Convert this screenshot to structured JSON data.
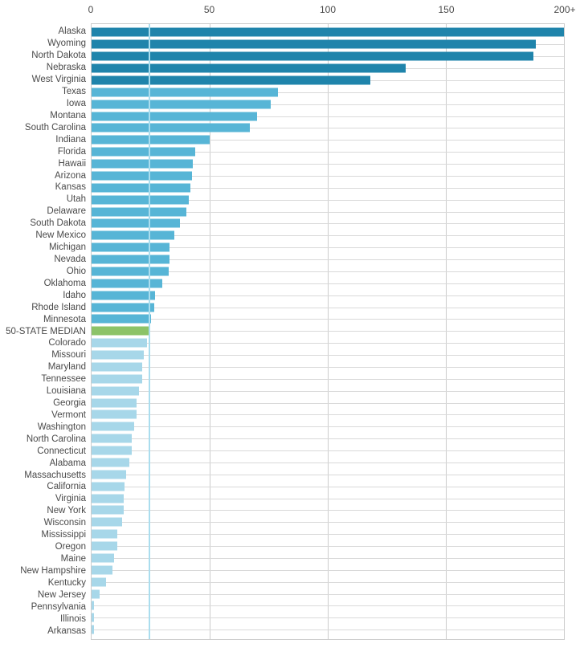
{
  "chart_data": {
    "type": "bar",
    "orientation": "horizontal",
    "title": "",
    "xlabel": "",
    "ylabel": "",
    "xlim": [
      0,
      200
    ],
    "x_axis": {
      "position": "top",
      "ticks": [
        {
          "label": "0",
          "value": 0
        },
        {
          "label": "50",
          "value": 50
        },
        {
          "label": "100",
          "value": 100
        },
        {
          "label": "150",
          "value": 150
        },
        {
          "label": "200+",
          "value": 200
        }
      ]
    },
    "grid": {
      "vertical": true,
      "horizontal_row_lines": true,
      "color": "#cccccc"
    },
    "legend": "none",
    "palette": {
      "top": "#1f84ab",
      "mid": "#57b5d6",
      "low": "#a7d7e9",
      "median": "#8cc368"
    },
    "median_line": {
      "value": 24.5,
      "color": "#aaddee"
    },
    "series": [
      {
        "label": "Alaska",
        "value": 200,
        "group": "top"
      },
      {
        "label": "Wyoming",
        "value": 188,
        "group": "top"
      },
      {
        "label": "North Dakota",
        "value": 187,
        "group": "top"
      },
      {
        "label": "Nebraska",
        "value": 133,
        "group": "top"
      },
      {
        "label": "West Virginia",
        "value": 118,
        "group": "top"
      },
      {
        "label": "Texas",
        "value": 79,
        "group": "mid"
      },
      {
        "label": "Iowa",
        "value": 76,
        "group": "mid"
      },
      {
        "label": "Montana",
        "value": 70,
        "group": "mid"
      },
      {
        "label": "South Carolina",
        "value": 67,
        "group": "mid"
      },
      {
        "label": "Indiana",
        "value": 50,
        "group": "mid"
      },
      {
        "label": "Florida",
        "value": 44,
        "group": "mid"
      },
      {
        "label": "Hawaii",
        "value": 43,
        "group": "mid"
      },
      {
        "label": "Arizona",
        "value": 42.5,
        "group": "mid"
      },
      {
        "label": "Kansas",
        "value": 42,
        "group": "mid"
      },
      {
        "label": "Utah",
        "value": 41,
        "group": "mid"
      },
      {
        "label": "Delaware",
        "value": 40,
        "group": "mid"
      },
      {
        "label": "South Dakota",
        "value": 37.5,
        "group": "mid"
      },
      {
        "label": "New Mexico",
        "value": 35,
        "group": "mid"
      },
      {
        "label": "Michigan",
        "value": 33,
        "group": "mid"
      },
      {
        "label": "Nevada",
        "value": 33,
        "group": "mid"
      },
      {
        "label": "Ohio",
        "value": 32.5,
        "group": "mid"
      },
      {
        "label": "Oklahoma",
        "value": 30,
        "group": "mid"
      },
      {
        "label": "Idaho",
        "value": 27,
        "group": "mid"
      },
      {
        "label": "Rhode Island",
        "value": 26.5,
        "group": "mid"
      },
      {
        "label": "Minnesota",
        "value": 25,
        "group": "mid"
      },
      {
        "label": "50-STATE MEDIAN",
        "value": 24.5,
        "group": "median"
      },
      {
        "label": "Colorado",
        "value": 23.5,
        "group": "low"
      },
      {
        "label": "Missouri",
        "value": 22,
        "group": "low"
      },
      {
        "label": "Maryland",
        "value": 21.5,
        "group": "low"
      },
      {
        "label": "Tennessee",
        "value": 21.5,
        "group": "low"
      },
      {
        "label": "Louisiana",
        "value": 20,
        "group": "low"
      },
      {
        "label": "Georgia",
        "value": 19,
        "group": "low"
      },
      {
        "label": "Vermont",
        "value": 19,
        "group": "low"
      },
      {
        "label": "Washington",
        "value": 18,
        "group": "low"
      },
      {
        "label": "North Carolina",
        "value": 17,
        "group": "low"
      },
      {
        "label": "Connecticut",
        "value": 17,
        "group": "low"
      },
      {
        "label": "Alabama",
        "value": 16,
        "group": "low"
      },
      {
        "label": "Massachusetts",
        "value": 14.5,
        "group": "low"
      },
      {
        "label": "California",
        "value": 14,
        "group": "low"
      },
      {
        "label": "Virginia",
        "value": 13.5,
        "group": "low"
      },
      {
        "label": "New York",
        "value": 13.5,
        "group": "low"
      },
      {
        "label": "Wisconsin",
        "value": 13,
        "group": "low"
      },
      {
        "label": "Mississippi",
        "value": 11,
        "group": "low"
      },
      {
        "label": "Oregon",
        "value": 11,
        "group": "low"
      },
      {
        "label": "Maine",
        "value": 9.5,
        "group": "low"
      },
      {
        "label": "New Hampshire",
        "value": 9,
        "group": "low"
      },
      {
        "label": "Kentucky",
        "value": 6,
        "group": "low"
      },
      {
        "label": "New Jersey",
        "value": 3.5,
        "group": "low"
      },
      {
        "label": "Pennsylvania",
        "value": 1,
        "group": "low"
      },
      {
        "label": "Illinois",
        "value": 1,
        "group": "low"
      },
      {
        "label": "Arkansas",
        "value": 1,
        "group": "low"
      }
    ]
  }
}
